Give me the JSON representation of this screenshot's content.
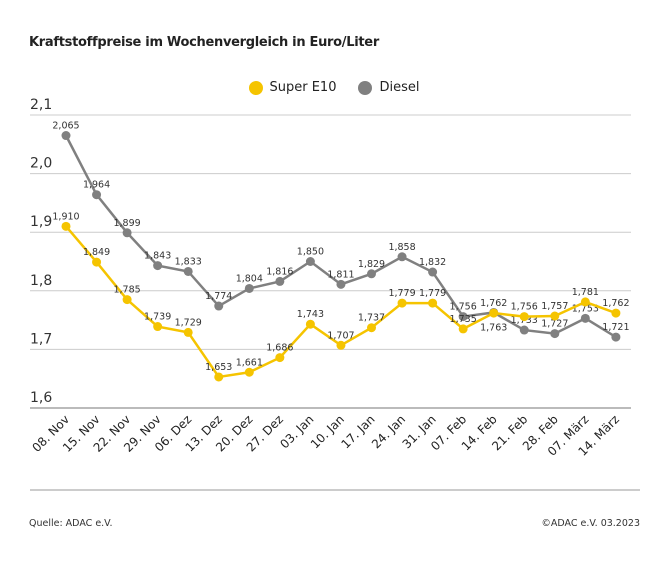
{
  "chart_data": {
    "type": "line",
    "title": "Kraftstoffpreise im Wochenvergleich in Euro/Liter",
    "categories": [
      "08. Nov",
      "15. Nov",
      "22. Nov",
      "29. Nov",
      "06. Dez",
      "13. Dez",
      "20. Dez",
      "27. Dez",
      "03. Jan",
      "10. Jan",
      "17. Jan",
      "24. Jan",
      "31. Jan",
      "07. Feb",
      "14. Feb",
      "21. Feb",
      "28. Feb",
      "07. März",
      "14. März"
    ],
    "series": [
      {
        "name": "Super E10",
        "color": "#f5c400",
        "values": [
          1.91,
          1.849,
          1.785,
          1.739,
          1.729,
          1.653,
          1.661,
          1.686,
          1.743,
          1.707,
          1.737,
          1.779,
          1.779,
          1.735,
          1.762,
          1.756,
          1.757,
          1.781,
          1.762
        ]
      },
      {
        "name": "Diesel",
        "color": "#808080",
        "values": [
          2.065,
          1.964,
          1.899,
          1.843,
          1.833,
          1.774,
          1.804,
          1.816,
          1.85,
          1.811,
          1.829,
          1.858,
          1.832,
          1.756,
          1.763,
          1.733,
          1.727,
          1.753,
          1.721
        ]
      }
    ],
    "ylim": [
      1.6,
      2.1
    ],
    "yticks": [
      "1,6",
      "1,7",
      "1,8",
      "1,9",
      "2,0",
      "2,1"
    ],
    "grid": true,
    "legend": "top-center"
  },
  "footer": {
    "source": "Quelle: ADAC e.V.",
    "copyright": "©ADAC e.V. 03.2023"
  }
}
